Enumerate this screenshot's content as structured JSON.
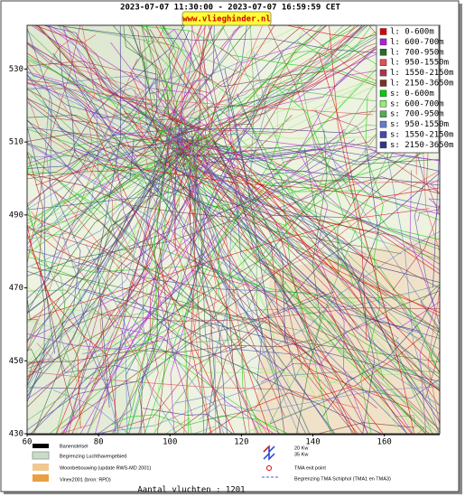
{
  "header": {
    "period": "2023-07-07 11:30:00 - 2023-07-07 16:59:59 CET",
    "site": "www.vlieghinder.nl"
  },
  "map": {
    "xlim": [
      60,
      175.5
    ],
    "ylim": [
      430,
      542
    ],
    "xticks": [
      60,
      80,
      100,
      120,
      140,
      160
    ],
    "yticks": [
      430,
      450,
      470,
      490,
      510,
      530
    ]
  },
  "legend": [
    {
      "label": "l: 0-600m",
      "color": "#e00000"
    },
    {
      "label": "l: 600-700m",
      "color": "#b020e0"
    },
    {
      "label": "l: 700-950m",
      "color": "#2a6a2a"
    },
    {
      "label": "l: 950-1550m",
      "color": "#e05050"
    },
    {
      "label": "l: 1550-2150m",
      "color": "#b03050"
    },
    {
      "label": "l: 2150-3650m",
      "color": "#803020"
    },
    {
      "label": "s: 0-600m",
      "color": "#00d000"
    },
    {
      "label": "s: 600-700m",
      "color": "#90f070"
    },
    {
      "label": "s: 700-950m",
      "color": "#50b050"
    },
    {
      "label": "s: 950-1550m",
      "color": "#6080c8"
    },
    {
      "label": "s: 1550-2150m",
      "color": "#4848a8"
    },
    {
      "label": "s: 2150-3650m",
      "color": "#343488"
    }
  ],
  "key": {
    "runways": "Banenstelsel",
    "airport": "Begrenzing Luchthavengebied",
    "housing": "Woonbebouwing (update RWS-MD 2001)",
    "vinex": "Vinex2001 (bron: RPD)",
    "kw": [
      "20 Kw",
      "35 Kw"
    ],
    "exit": "TMA exit point",
    "tma": "Begrenzing TMA Schiphol  (TMA1 en TMA3)"
  },
  "footer": "Aantal vluchten : 1201"
}
